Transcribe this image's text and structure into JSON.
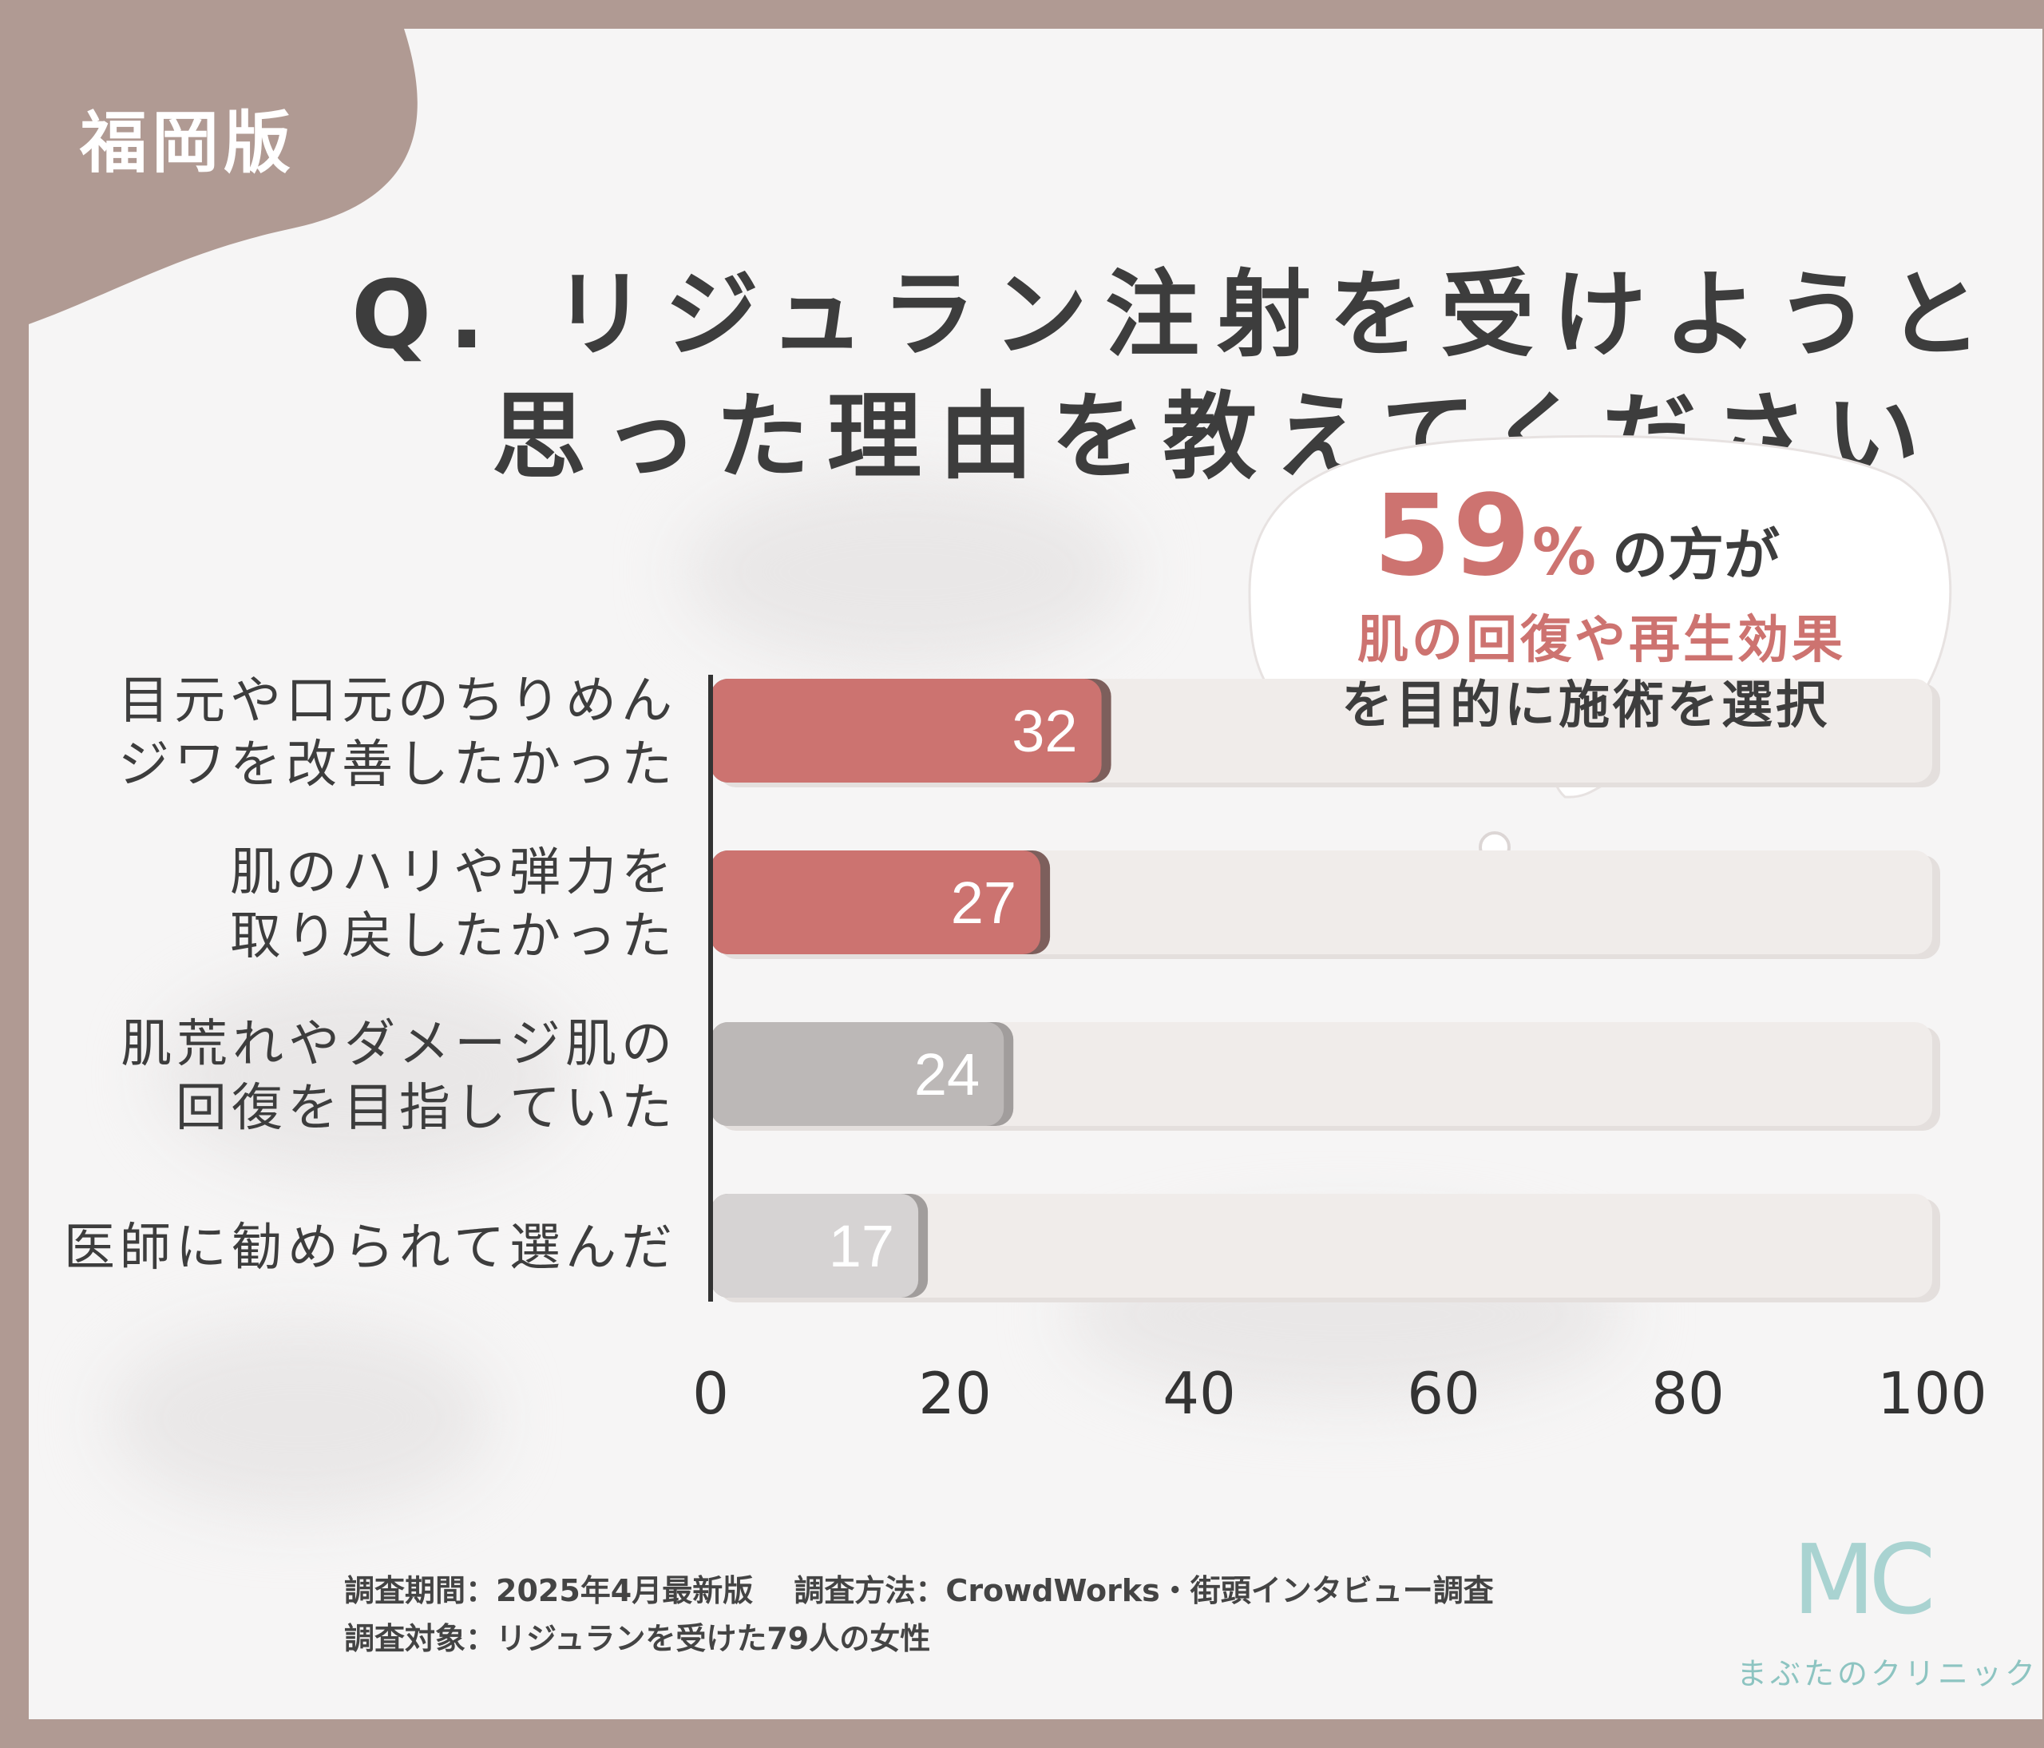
{
  "edition": "福岡版",
  "title": {
    "line1": "Q. リジュラン注射を受けようと",
    "line2": "思った理由を教えてください"
  },
  "callout": {
    "percent": "59",
    "unit": "%",
    "line1_suffix": "の方が",
    "line2": "肌の回復や再生効果",
    "line3": "を目的に施術を選択"
  },
  "chart_data": {
    "type": "bar",
    "orientation": "horizontal",
    "categories": [
      [
        "目元や口元のちりめん",
        "ジワを改善したかった"
      ],
      [
        "肌のハリや弾力を",
        "取り戻したかった"
      ],
      [
        "肌荒れやダメージ肌の",
        "回復を目指していた"
      ],
      [
        "医師に勧められて選んだ"
      ]
    ],
    "values": [
      32,
      27,
      24,
      17
    ],
    "value_labels": [
      "32",
      "27",
      "24",
      "17"
    ],
    "xlim": [
      0,
      100
    ],
    "xticks": [
      0,
      20,
      40,
      60,
      80,
      100
    ],
    "xtick_labels": [
      "0",
      "20",
      "40",
      "60",
      "80",
      "100"
    ],
    "highlighted": [
      true,
      true,
      false,
      false
    ],
    "colors": {
      "highlight": "#cc7370",
      "highlight_shadow": "#7d5f5c",
      "other": [
        "#bcb8b7",
        "#d6d3d3"
      ],
      "other_shadow": "#a19d9c",
      "track": "#f0ecea",
      "axis": "#333333"
    }
  },
  "footnotes": {
    "line1": "調査期間：2025年4月最新版　 調査方法：CrowdWorks・街頭インタビュー調査",
    "line2": "調査対象：リジュランを受けた79人の女性"
  },
  "logo": {
    "mark": "MC",
    "name": "まぶたのクリニック"
  }
}
